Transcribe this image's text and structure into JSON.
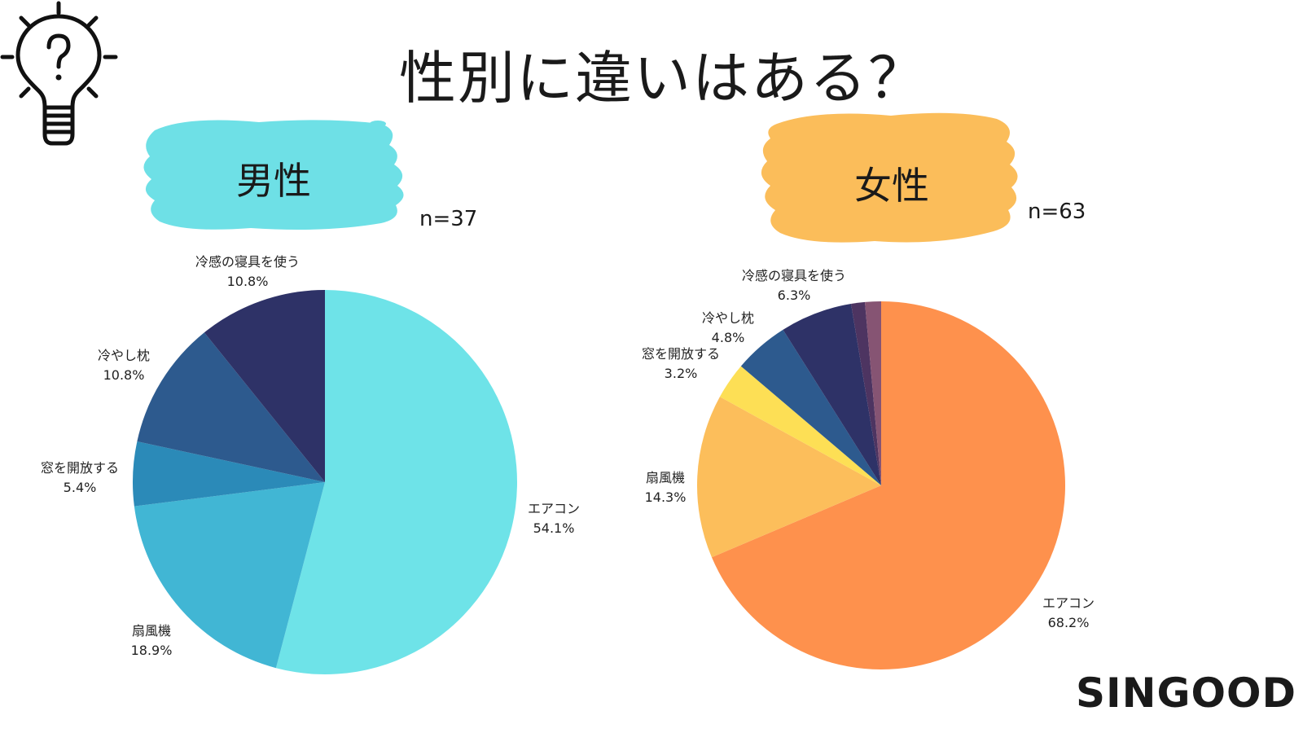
{
  "title": "性別に違いはある？",
  "brand": "SINGOOD",
  "colors": {
    "male_blob": "#6ee0e6",
    "female_blob": "#fbbd5a"
  },
  "icons": {
    "idea": "lightbulb-question-icon"
  },
  "chart_data": [
    {
      "type": "pie",
      "group": "男性",
      "n_label": "n=37",
      "slices": [
        {
          "label": "エアコン",
          "value": 54.1,
          "value_label": "54.1%",
          "color": "#6ee3e8"
        },
        {
          "label": "扇風機",
          "value": 18.9,
          "value_label": "18.9%",
          "color": "#41b6d4"
        },
        {
          "label": "窓を開放する",
          "value": 5.4,
          "value_label": "5.4%",
          "color": "#2b8ab8"
        },
        {
          "label": "冷やし枕",
          "value": 10.8,
          "value_label": "10.8%",
          "color": "#2d5a8e"
        },
        {
          "label": "冷感の寝具を使う",
          "value": 10.8,
          "value_label": "10.8%",
          "color": "#2e3267"
        }
      ]
    },
    {
      "type": "pie",
      "group": "女性",
      "n_label": "n=63",
      "slices": [
        {
          "label": "エアコン",
          "value": 68.2,
          "value_label": "68.2%",
          "color": "#fe914d"
        },
        {
          "label": "扇風機",
          "value": 14.3,
          "value_label": "14.3%",
          "color": "#fcbe5b"
        },
        {
          "label": "窓を開放する",
          "value": 3.2,
          "value_label": "3.2%",
          "color": "#fddf55"
        },
        {
          "label": "冷やし枕",
          "value": 4.8,
          "value_label": "4.8%",
          "color": "#2d5a8e"
        },
        {
          "label": "冷感の寝具を使う",
          "value": 6.3,
          "value_label": "6.3%",
          "color": "#2e3267"
        },
        {
          "label": "",
          "value": 1.2,
          "value_label": "",
          "color": "#4d3461"
        },
        {
          "label": "",
          "value": 1.4,
          "value_label": "",
          "color": "#865473"
        }
      ]
    }
  ]
}
